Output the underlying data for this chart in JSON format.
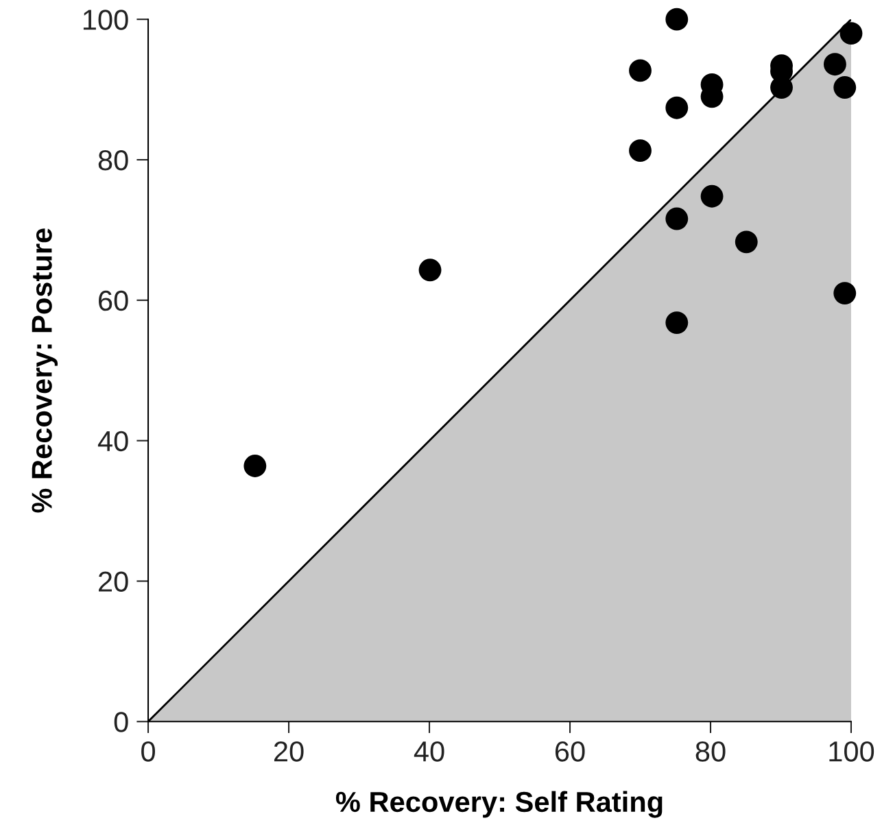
{
  "chart_data": {
    "type": "scatter",
    "xlabel": "% Recovery: Self Rating",
    "ylabel": "% Recovery: Posture",
    "xlim": [
      0,
      100
    ],
    "ylim": [
      0,
      100
    ],
    "xticks": [
      0,
      20,
      40,
      60,
      80,
      100
    ],
    "yticks": [
      0,
      20,
      40,
      60,
      80,
      100
    ],
    "grid": false,
    "legend": false,
    "series": [
      {
        "type": "area",
        "color": "#c8c8c8",
        "x": [
          0,
          100
        ],
        "values": [
          0,
          100
        ]
      },
      {
        "color": "#000000",
        "marker": "circle",
        "x": [
          15.2,
          40.1,
          70,
          70,
          75.2,
          75.2,
          75.2,
          75.2,
          80.2,
          80.2,
          80.2,
          85.1,
          90.1,
          90.1,
          90.1,
          97.7,
          99.1,
          99.1,
          100
        ],
        "values": [
          36.4,
          64.3,
          92.7,
          81.3,
          100,
          87.4,
          71.6,
          56.8,
          90.7,
          89.0,
          74.8,
          68.3,
          93.4,
          92.6,
          90.3,
          93.6,
          90.3,
          61.0,
          98.0
        ]
      }
    ]
  }
}
